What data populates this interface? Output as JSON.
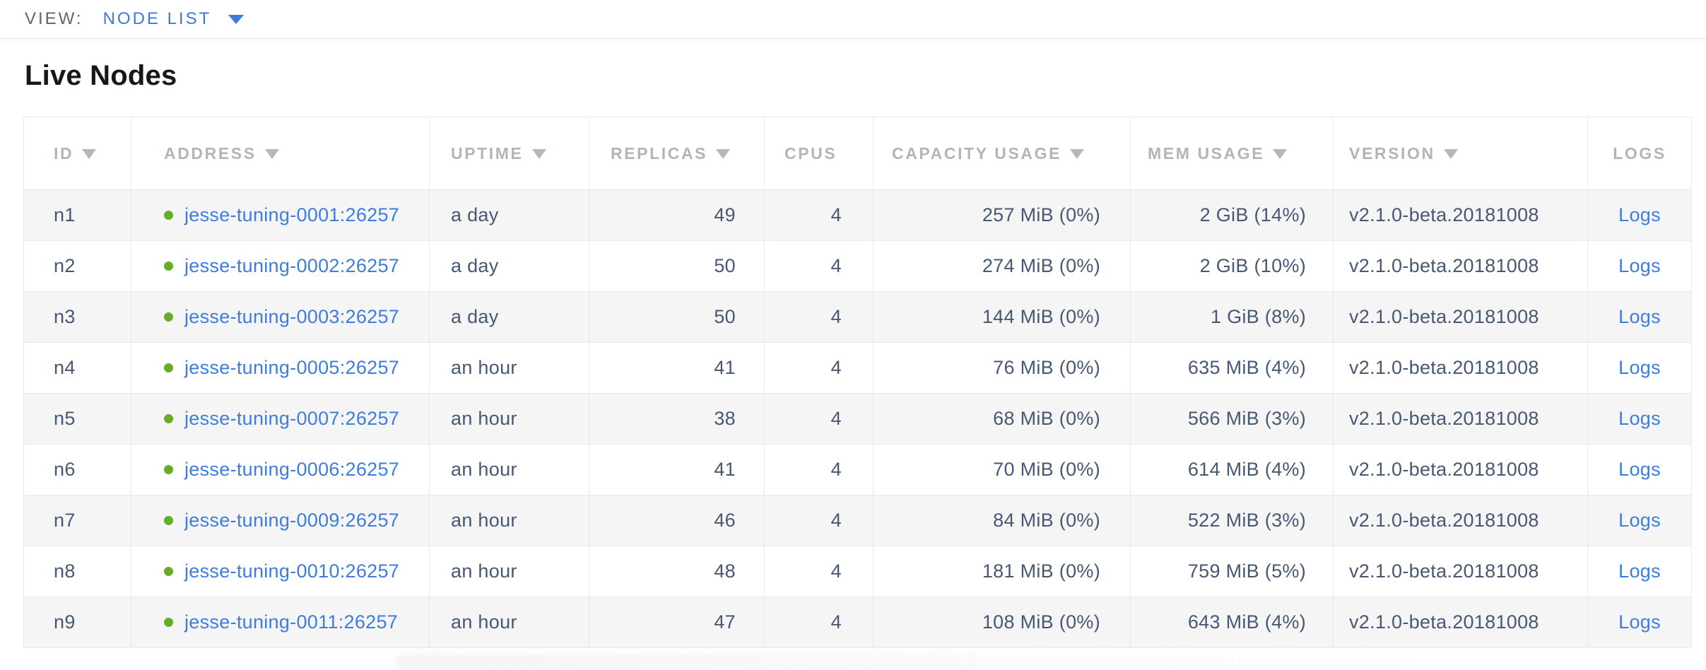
{
  "view_bar": {
    "label": "VIEW:",
    "selected": "NODE LIST"
  },
  "page": {
    "title": "Live Nodes"
  },
  "table": {
    "columns": [
      {
        "key": "id",
        "label": "ID",
        "sortable": true
      },
      {
        "key": "address",
        "label": "ADDRESS",
        "sortable": true
      },
      {
        "key": "uptime",
        "label": "UPTIME",
        "sortable": true
      },
      {
        "key": "replicas",
        "label": "REPLICAS",
        "sortable": true
      },
      {
        "key": "cpus",
        "label": "CPUS",
        "sortable": false
      },
      {
        "key": "capacity",
        "label": "CAPACITY USAGE",
        "sortable": true
      },
      {
        "key": "mem",
        "label": "MEM USAGE",
        "sortable": true
      },
      {
        "key": "version",
        "label": "VERSION",
        "sortable": true
      },
      {
        "key": "logs",
        "label": "LOGS",
        "sortable": false
      }
    ],
    "rows": [
      {
        "id": "n1",
        "address": "jesse-tuning-0001:26257",
        "status": "live",
        "uptime": "a day",
        "replicas": "49",
        "cpus": "4",
        "capacity": "257 MiB (0%)",
        "mem": "2 GiB (14%)",
        "version": "v2.1.0-beta.20181008",
        "logs": "Logs"
      },
      {
        "id": "n2",
        "address": "jesse-tuning-0002:26257",
        "status": "live",
        "uptime": "a day",
        "replicas": "50",
        "cpus": "4",
        "capacity": "274 MiB (0%)",
        "mem": "2 GiB (10%)",
        "version": "v2.1.0-beta.20181008",
        "logs": "Logs"
      },
      {
        "id": "n3",
        "address": "jesse-tuning-0003:26257",
        "status": "live",
        "uptime": "a day",
        "replicas": "50",
        "cpus": "4",
        "capacity": "144 MiB (0%)",
        "mem": "1 GiB (8%)",
        "version": "v2.1.0-beta.20181008",
        "logs": "Logs"
      },
      {
        "id": "n4",
        "address": "jesse-tuning-0005:26257",
        "status": "live",
        "uptime": "an hour",
        "replicas": "41",
        "cpus": "4",
        "capacity": "76 MiB (0%)",
        "mem": "635 MiB (4%)",
        "version": "v2.1.0-beta.20181008",
        "logs": "Logs"
      },
      {
        "id": "n5",
        "address": "jesse-tuning-0007:26257",
        "status": "live",
        "uptime": "an hour",
        "replicas": "38",
        "cpus": "4",
        "capacity": "68 MiB (0%)",
        "mem": "566 MiB (3%)",
        "version": "v2.1.0-beta.20181008",
        "logs": "Logs"
      },
      {
        "id": "n6",
        "address": "jesse-tuning-0006:26257",
        "status": "live",
        "uptime": "an hour",
        "replicas": "41",
        "cpus": "4",
        "capacity": "70 MiB (0%)",
        "mem": "614 MiB (4%)",
        "version": "v2.1.0-beta.20181008",
        "logs": "Logs"
      },
      {
        "id": "n7",
        "address": "jesse-tuning-0009:26257",
        "status": "live",
        "uptime": "an hour",
        "replicas": "46",
        "cpus": "4",
        "capacity": "84 MiB (0%)",
        "mem": "522 MiB (3%)",
        "version": "v2.1.0-beta.20181008",
        "logs": "Logs"
      },
      {
        "id": "n8",
        "address": "jesse-tuning-0010:26257",
        "status": "live",
        "uptime": "an hour",
        "replicas": "48",
        "cpus": "4",
        "capacity": "181 MiB (0%)",
        "mem": "759 MiB (5%)",
        "version": "v2.1.0-beta.20181008",
        "logs": "Logs"
      },
      {
        "id": "n9",
        "address": "jesse-tuning-0011:26257",
        "status": "live",
        "uptime": "an hour",
        "replicas": "47",
        "cpus": "4",
        "capacity": "108 MiB (0%)",
        "mem": "643 MiB (4%)",
        "version": "v2.1.0-beta.20181008",
        "logs": "Logs"
      }
    ]
  },
  "colors": {
    "link_blue": "#3e7ce0",
    "dropdown_blue": "#3b7adb",
    "live_dot_green": "#68ad2a",
    "header_gray": "#b1b5ba",
    "cell_text": "#475872",
    "row_stripe": "#f5f5f6",
    "border": "#e9e9eb"
  }
}
